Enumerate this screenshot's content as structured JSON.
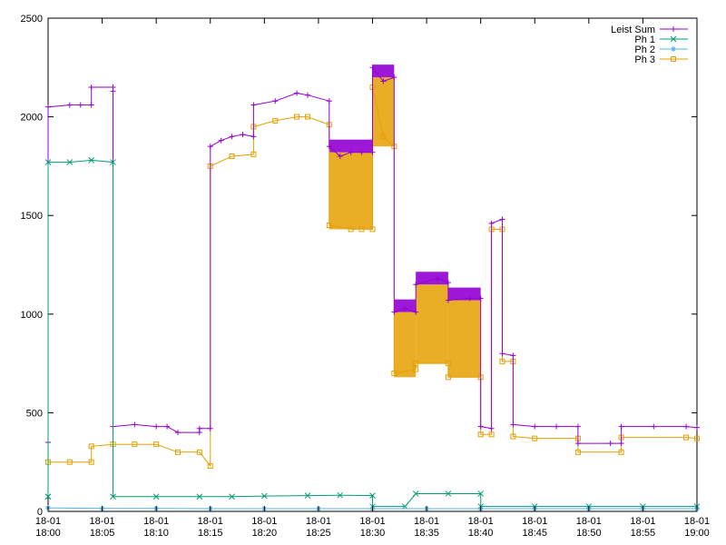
{
  "chart_data": {
    "type": "line",
    "title": "",
    "xlabel": "",
    "ylabel": "",
    "xlim": [
      "18:00",
      "19:00"
    ],
    "ylim": [
      0,
      2500
    ],
    "grid": false,
    "legend_position": "top-right",
    "y_ticks": [
      0,
      500,
      1000,
      1500,
      2000,
      2500
    ],
    "x_ticks": [
      {
        "date": "18-01",
        "time": "18:00"
      },
      {
        "date": "18-01",
        "time": "18:05"
      },
      {
        "date": "18-01",
        "time": "18:10"
      },
      {
        "date": "18-01",
        "time": "18:15"
      },
      {
        "date": "18-01",
        "time": "18:20"
      },
      {
        "date": "18-01",
        "time": "18:25"
      },
      {
        "date": "18-01",
        "time": "18:30"
      },
      {
        "date": "18-01",
        "time": "18:35"
      },
      {
        "date": "18-01",
        "time": "18:40"
      },
      {
        "date": "18-01",
        "time": "18:45"
      },
      {
        "date": "18-01",
        "time": "18:50"
      },
      {
        "date": "18-01",
        "time": "18:55"
      },
      {
        "date": "18-01",
        "time": "19:00"
      }
    ],
    "series": [
      {
        "name": "Leist Sum",
        "color": "#9400d3",
        "marker": "plus",
        "points": [
          [
            "18:00",
            350
          ],
          [
            "18:00",
            350
          ],
          [
            "18:00",
            2050
          ],
          [
            "18:02",
            2060
          ],
          [
            "18:03",
            2060
          ],
          [
            "18:04",
            2060
          ],
          [
            "18:04",
            2150
          ],
          [
            "18:06",
            2150
          ],
          [
            "18:06",
            2130
          ],
          [
            "18:06",
            430
          ],
          [
            "18:08",
            440
          ],
          [
            "18:10",
            430
          ],
          [
            "18:11",
            430
          ],
          [
            "18:12",
            400
          ],
          [
            "18:14",
            400
          ],
          [
            "18:14",
            420
          ],
          [
            "18:15",
            420
          ],
          [
            "18:15",
            1850
          ],
          [
            "18:16",
            1880
          ],
          [
            "18:17",
            1900
          ],
          [
            "18:18",
            1910
          ],
          [
            "18:19",
            1900
          ],
          [
            "18:19",
            2060
          ],
          [
            "18:21",
            2080
          ],
          [
            "18:23",
            2120
          ],
          [
            "18:24",
            2110
          ],
          [
            "18:26",
            2080
          ],
          [
            "18:26",
            1850
          ],
          [
            "18:27",
            1800
          ],
          [
            "18:28",
            1820
          ],
          [
            "18:29",
            1820
          ],
          [
            "18:30",
            1820
          ],
          [
            "18:30",
            2250
          ],
          [
            "18:31",
            2180
          ],
          [
            "18:32",
            2200
          ],
          [
            "18:32",
            1010
          ],
          [
            "18:33",
            1030
          ],
          [
            "18:34",
            1010
          ],
          [
            "18:34",
            1150
          ],
          [
            "18:36",
            1180
          ],
          [
            "18:37",
            1160
          ],
          [
            "18:37",
            1070
          ],
          [
            "18:39",
            1080
          ],
          [
            "18:40",
            1080
          ],
          [
            "18:40",
            430
          ],
          [
            "18:41",
            420
          ],
          [
            "18:41",
            1460
          ],
          [
            "18:42",
            1480
          ],
          [
            "18:42",
            800
          ],
          [
            "18:43",
            790
          ],
          [
            "18:43",
            440
          ],
          [
            "18:45",
            430
          ],
          [
            "18:47",
            430
          ],
          [
            "18:49",
            430
          ],
          [
            "18:49",
            345
          ],
          [
            "18:52",
            345
          ],
          [
            "18:53",
            345
          ],
          [
            "18:53",
            430
          ],
          [
            "18:56",
            430
          ],
          [
            "18:59",
            430
          ],
          [
            "19:00",
            425
          ]
        ]
      },
      {
        "name": "Ph 1",
        "color": "#009e73",
        "marker": "x",
        "points": [
          [
            "18:00",
            75
          ],
          [
            "18:00",
            75
          ],
          [
            "18:00",
            1770
          ],
          [
            "18:02",
            1770
          ],
          [
            "18:04",
            1780
          ],
          [
            "18:06",
            1770
          ],
          [
            "18:06",
            75
          ],
          [
            "18:10",
            75
          ],
          [
            "18:14",
            75
          ],
          [
            "18:17",
            75
          ],
          [
            "18:20",
            78
          ],
          [
            "18:24",
            80
          ],
          [
            "18:27",
            82
          ],
          [
            "18:30",
            80
          ],
          [
            "18:30",
            25
          ],
          [
            "18:33",
            25
          ],
          [
            "18:34",
            90
          ],
          [
            "18:37",
            90
          ],
          [
            "18:40",
            90
          ],
          [
            "18:40",
            25
          ],
          [
            "18:45",
            25
          ],
          [
            "18:50",
            25
          ],
          [
            "18:55",
            25
          ],
          [
            "19:00",
            25
          ]
        ]
      },
      {
        "name": "Ph 2",
        "color": "#56b4e9",
        "marker": "star",
        "points": [
          [
            "18:00",
            18
          ],
          [
            "18:05",
            15
          ],
          [
            "18:10",
            15
          ],
          [
            "18:15",
            14
          ],
          [
            "18:20",
            14
          ],
          [
            "18:25",
            14
          ],
          [
            "18:30",
            14
          ],
          [
            "18:35",
            14
          ],
          [
            "18:40",
            14
          ],
          [
            "18:45",
            14
          ],
          [
            "18:50",
            14
          ],
          [
            "18:55",
            14
          ],
          [
            "19:00",
            14
          ]
        ]
      },
      {
        "name": "Ph 3",
        "color": "#e69f00",
        "marker": "square",
        "points": [
          [
            "18:00",
            250
          ],
          [
            "18:02",
            250
          ],
          [
            "18:04",
            250
          ],
          [
            "18:04",
            330
          ],
          [
            "18:06",
            340
          ],
          [
            "18:08",
            340
          ],
          [
            "18:10",
            340
          ],
          [
            "18:12",
            300
          ],
          [
            "18:14",
            300
          ],
          [
            "18:15",
            230
          ],
          [
            "18:15",
            1750
          ],
          [
            "18:17",
            1800
          ],
          [
            "18:19",
            1810
          ],
          [
            "18:19",
            1950
          ],
          [
            "18:21",
            1980
          ],
          [
            "18:23",
            2000
          ],
          [
            "18:24",
            2000
          ],
          [
            "18:26",
            1960
          ],
          [
            "18:26",
            1450
          ],
          [
            "18:28",
            1430
          ],
          [
            "18:29",
            1430
          ],
          [
            "18:30",
            1430
          ],
          [
            "18:30",
            2150
          ],
          [
            "18:31",
            1900
          ],
          [
            "18:32",
            1850
          ],
          [
            "18:32",
            700
          ],
          [
            "18:34",
            720
          ],
          [
            "18:34",
            750
          ],
          [
            "18:37",
            750
          ],
          [
            "18:37",
            680
          ],
          [
            "18:40",
            680
          ],
          [
            "18:40",
            390
          ],
          [
            "18:41",
            390
          ],
          [
            "18:41",
            1430
          ],
          [
            "18:42",
            1430
          ],
          [
            "18:42",
            760
          ],
          [
            "18:43",
            760
          ],
          [
            "18:43",
            380
          ],
          [
            "18:45",
            370
          ],
          [
            "18:49",
            370
          ],
          [
            "18:49",
            300
          ],
          [
            "18:53",
            300
          ],
          [
            "18:53",
            375
          ],
          [
            "18:59",
            375
          ],
          [
            "19:00",
            370
          ]
        ],
        "band_spans": [
          {
            "start": "18:26",
            "end": "18:30",
            "low": 1430,
            "high": 1820
          },
          {
            "start": "18:30",
            "end": "18:32",
            "low": 1850,
            "high": 2200
          },
          {
            "start": "18:32",
            "end": "18:34",
            "low": 680,
            "high": 1010
          },
          {
            "start": "18:34",
            "end": "18:37",
            "low": 750,
            "high": 1150
          },
          {
            "start": "18:37",
            "end": "18:40",
            "low": 680,
            "high": 1070
          }
        ]
      }
    ]
  }
}
